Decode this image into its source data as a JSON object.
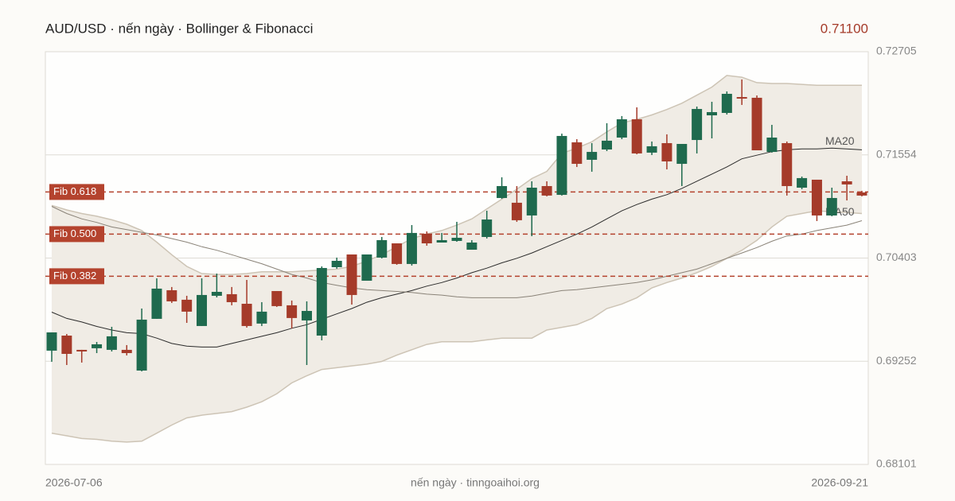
{
  "chart_data": {
    "type": "candlestick",
    "title": "AUD/USD · nến ngày · Bollinger & Fibonacci",
    "last_price": {
      "value": 0.711,
      "label": "0.71100"
    },
    "source": "nến ngày · tinngoaihoi.org",
    "categories": [
      "2026-07-06",
      null,
      null,
      null,
      null,
      null,
      null,
      null,
      null,
      null,
      null,
      null,
      null,
      null,
      null,
      null,
      null,
      null,
      null,
      null,
      null,
      null,
      null,
      null,
      null,
      null,
      null,
      null,
      null,
      null,
      null,
      null,
      null,
      null,
      null,
      null,
      null,
      null,
      null,
      null,
      null,
      null,
      null,
      null,
      null,
      null,
      null,
      null,
      null,
      null,
      null,
      null,
      null,
      null,
      "2026-09-21"
    ],
    "open": [
      0.6937,
      0.69538,
      0.69379,
      0.69397,
      0.69379,
      0.69379,
      0.69148,
      0.69725,
      0.70044,
      0.69938,
      0.69645,
      0.69982,
      0.7,
      0.69893,
      0.69672,
      0.70035,
      0.69876,
      0.69707,
      0.69538,
      0.70301,
      0.70443,
      0.7015,
      0.70408,
      0.70567,
      0.70337,
      0.70674,
      0.70576,
      0.70594,
      0.70496,
      0.70638,
      0.71073,
      0.7102,
      0.70878,
      0.71206,
      0.71108,
      0.71694,
      0.71499,
      0.71614,
      0.71747,
      0.71951,
      0.71579,
      0.71685,
      0.71454,
      0.7172,
      0.71995,
      0.72022,
      0.72199,
      0.72191,
      0.71587,
      0.71685,
      0.71188,
      0.71277,
      0.70878,
      0.71259,
      0.71135
    ],
    "high": [
      0.69574,
      0.69556,
      0.69379,
      0.69467,
      0.69636,
      0.69432,
      0.6984,
      0.70177,
      0.7008,
      0.69982,
      0.70177,
      0.7023,
      0.7008,
      0.70159,
      0.69911,
      0.70035,
      0.69929,
      0.6992,
      0.7031,
      0.70408,
      0.70443,
      0.70443,
      0.70638,
      0.70567,
      0.70771,
      0.707,
      0.70683,
      0.70807,
      0.70603,
      0.70931,
      0.71304,
      0.71206,
      0.71259,
      0.71259,
      0.71791,
      0.71729,
      0.71685,
      0.71907,
      0.71987,
      0.72084,
      0.71703,
      0.71783,
      0.71676,
      0.72093,
      0.72146,
      0.72262,
      0.72395,
      0.72217,
      0.71889,
      0.71703,
      0.71312,
      0.71277,
      0.71188,
      0.71321,
      0.71153
    ],
    "low": [
      0.69246,
      0.6921,
      0.69237,
      0.69343,
      0.69361,
      0.69317,
      0.69139,
      0.69725,
      0.69902,
      0.6968,
      0.69645,
      0.69964,
      0.69876,
      0.69627,
      0.69645,
      0.69858,
      0.69618,
      0.6921,
      0.69485,
      0.70284,
      0.69884,
      0.7015,
      0.70399,
      0.70328,
      0.70319,
      0.70541,
      0.70576,
      0.70585,
      0.70496,
      0.70621,
      0.71064,
      0.70807,
      0.70647,
      0.71091,
      0.711,
      0.71419,
      0.71366,
      0.71596,
      0.71729,
      0.71561,
      0.71552,
      0.71392,
      0.71206,
      0.7157,
      0.71738,
      0.72004,
      0.72111,
      0.71605,
      0.71579,
      0.711,
      0.71171,
      0.70816,
      0.70869,
      0.71046,
      0.71091
    ],
    "close": [
      0.69574,
      0.69334,
      0.69361,
      0.69441,
      0.6953,
      0.69343,
      0.69716,
      0.70062,
      0.6992,
      0.69805,
      0.69991,
      0.70026,
      0.69911,
      0.69645,
      0.69805,
      0.69867,
      0.69734,
      0.69813,
      0.70292,
      0.70372,
      0.69991,
      0.70443,
      0.70603,
      0.70337,
      0.70683,
      0.70567,
      0.70603,
      0.70629,
      0.70576,
      0.70833,
      0.71206,
      0.70825,
      0.71188,
      0.711,
      0.71765,
      0.71454,
      0.71587,
      0.71712,
      0.71951,
      0.7157,
      0.7165,
      0.71481,
      0.71676,
      0.72066,
      0.72031,
      0.72235,
      0.72182,
      0.71605,
      0.71747,
      0.71206,
      0.71295,
      0.70878,
      0.71073,
      0.71224,
      0.711
    ],
    "up_color": "#1f6a4e",
    "down_color": "#a53b2a",
    "bands": {
      "color": "#cdc4b5",
      "fill": "#f0ece5",
      "upper": [
        0.7099,
        0.7094,
        0.709,
        0.7087,
        0.7083,
        0.7078,
        0.7071,
        0.7058,
        0.7044,
        0.7031,
        0.7023,
        0.7022,
        0.7022,
        0.7023,
        0.7025,
        0.7025,
        0.7025,
        0.7026,
        0.7027,
        0.7028,
        0.7031,
        0.7037,
        0.7044,
        0.7053,
        0.7062,
        0.7067,
        0.7071,
        0.7077,
        0.7084,
        0.7095,
        0.7106,
        0.7117,
        0.7129,
        0.7137,
        0.7157,
        0.7163,
        0.717,
        0.7181,
        0.7191,
        0.7195,
        0.72,
        0.7206,
        0.7213,
        0.7222,
        0.7231,
        0.7244,
        0.7242,
        0.7236,
        0.7235,
        0.7235,
        0.7234,
        0.7233,
        0.7233,
        0.7233,
        0.7233
      ],
      "lower": [
        0.6845,
        0.6842,
        0.6839,
        0.6838,
        0.6836,
        0.6835,
        0.6836,
        0.6845,
        0.6854,
        0.6862,
        0.6865,
        0.6867,
        0.6869,
        0.6874,
        0.688,
        0.6889,
        0.6901,
        0.6909,
        0.6916,
        0.6918,
        0.692,
        0.6922,
        0.6925,
        0.6932,
        0.6938,
        0.6944,
        0.6947,
        0.6947,
        0.6947,
        0.6949,
        0.6951,
        0.6951,
        0.6951,
        0.696,
        0.6963,
        0.6966,
        0.6973,
        0.6984,
        0.6989,
        0.6996,
        0.7007,
        0.7013,
        0.7018,
        0.7024,
        0.7031,
        0.704,
        0.7049,
        0.706,
        0.7075,
        0.7087,
        0.709,
        0.7093,
        0.7092,
        0.7091,
        0.709
      ]
    },
    "lines": [
      {
        "name": "MA20",
        "color": "#2b2b2b",
        "values": [
          0.698,
          0.6973,
          0.6969,
          0.6964,
          0.696,
          0.6957,
          0.6956,
          0.6951,
          0.6945,
          0.6942,
          0.6941,
          0.6941,
          0.6945,
          0.6949,
          0.6953,
          0.6957,
          0.6962,
          0.6966,
          0.6972,
          0.6978,
          0.6984,
          0.6991,
          0.6996,
          0.7,
          0.7004,
          0.7009,
          0.7013,
          0.7018,
          0.7024,
          0.7029,
          0.7035,
          0.704,
          0.7046,
          0.7053,
          0.706,
          0.7067,
          0.7075,
          0.7084,
          0.7093,
          0.71,
          0.7106,
          0.7111,
          0.7118,
          0.7126,
          0.7134,
          0.7142,
          0.7151,
          0.7155,
          0.7159,
          0.7161,
          0.7162,
          0.7162,
          0.7163,
          0.7162,
          0.7161
        ]
      },
      {
        "name": "MA50",
        "color": "#8a8378",
        "values": [
          0.7098,
          0.709,
          0.7084,
          0.708,
          0.7075,
          0.7072,
          0.7069,
          0.7066,
          0.7062,
          0.7058,
          0.7053,
          0.7049,
          0.7044,
          0.7039,
          0.7034,
          0.7028,
          0.7022,
          0.7018,
          0.7013,
          0.701,
          0.7007,
          0.7005,
          0.7004,
          0.7003,
          0.7002,
          0.7,
          0.6999,
          0.6997,
          0.6996,
          0.6996,
          0.6996,
          0.6996,
          0.6998,
          0.7001,
          0.7004,
          0.7005,
          0.7007,
          0.7009,
          0.7011,
          0.7013,
          0.7016,
          0.702,
          0.7024,
          0.7028,
          0.7034,
          0.704,
          0.7046,
          0.7052,
          0.7059,
          0.7065,
          0.7067,
          0.7071,
          0.7074,
          0.7077,
          0.7082
        ]
      }
    ],
    "fib_levels": [
      {
        "label": "Fib 0.618",
        "value": 0.7114
      },
      {
        "label": "Fib 0.500",
        "value": 0.7067
      },
      {
        "label": "Fib 0.382",
        "value": 0.702
      }
    ],
    "fib_color": "#b4432e",
    "ylim": [
      0.68101,
      0.72705
    ],
    "yticks": [
      0.68101,
      0.69252,
      0.70403,
      0.71554,
      0.72705
    ],
    "grid": true
  }
}
